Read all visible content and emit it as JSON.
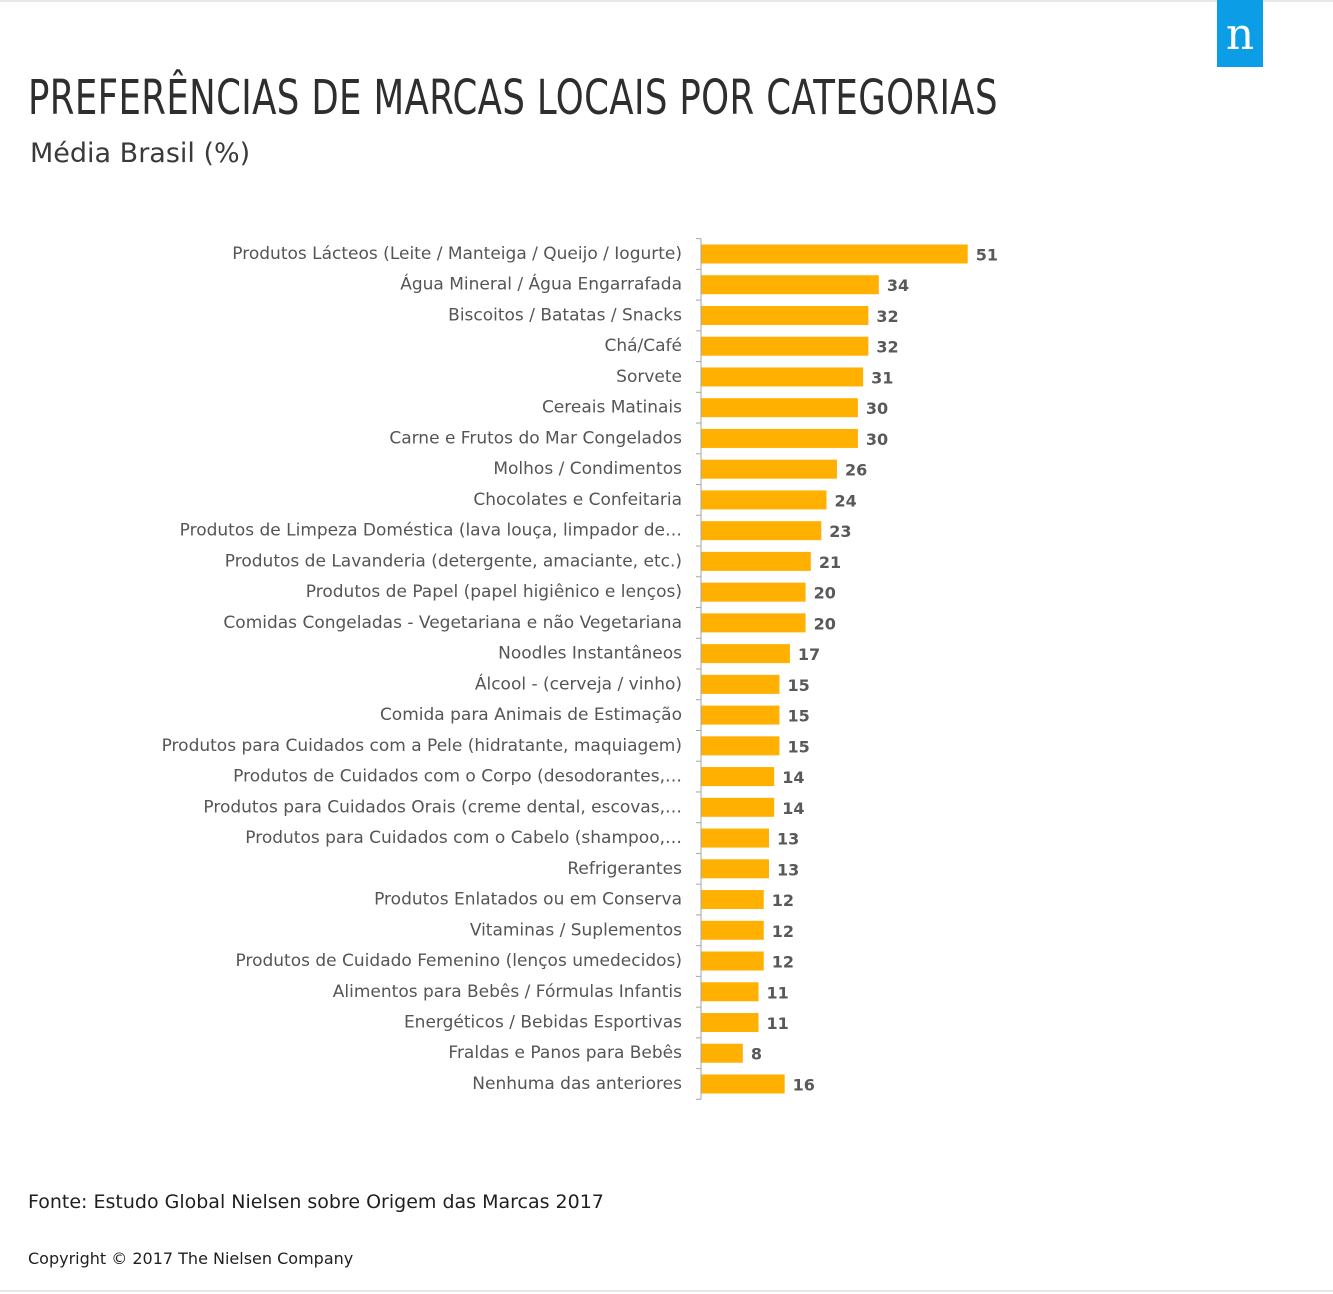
{
  "title": "PREFERÊNCIAS DE MARCAS LOCAIS POR CATEGORIAS",
  "subtitle": "Média Brasil (%)",
  "logo": {
    "letter": "n",
    "color": "#0b9ee6"
  },
  "source": "Fonte: Estudo Global Nielsen sobre Origem das Marcas 2017",
  "copyright": "Copyright  © 2017 The Nielsen  Company",
  "colors": {
    "bar": "#ffb000",
    "axis": "#a6a6a6",
    "label": "#555555",
    "value": "#595959"
  },
  "chart_data": {
    "type": "bar",
    "orientation": "horizontal",
    "title": "PREFERÊNCIAS DE MARCAS LOCAIS POR CATEGORIAS",
    "subtitle": "Média Brasil (%)",
    "xlabel": "",
    "ylabel": "",
    "grid": false,
    "legend": "none",
    "data_labels": true,
    "categories": [
      "Produtos Lácteos (Leite / Manteiga / Queijo / Iogurte)",
      "Água Mineral / Água Engarrafada",
      "Biscoitos / Batatas / Snacks",
      "Chá/Café",
      "Sorvete",
      "Cereais Matinais",
      "Carne e Frutos do Mar Congelados",
      "Molhos / Condimentos",
      "Chocolates e Confeitaria",
      "Produtos de Limpeza Doméstica (lava louça, limpador de…",
      "Produtos de Lavanderia (detergente, amaciante, etc.)",
      "Produtos de Papel (papel higiênico e lenços)",
      "Comidas Congeladas - Vegetariana e não Vegetariana",
      "Noodles Instantâneos",
      "Álcool - (cerveja / vinho)",
      "Comida para Animais de Estimação",
      "Produtos para Cuidados com a Pele (hidratante, maquiagem)",
      "Produtos de Cuidados com o Corpo (desodorantes,…",
      "Produtos para Cuidados Orais (creme dental, escovas,…",
      "Produtos para Cuidados com o Cabelo (shampoo,…",
      "Refrigerantes",
      "Produtos Enlatados ou em Conserva",
      "Vitaminas / Suplementos",
      "Produtos de Cuidado Femenino  (lenços umedecidos)",
      "Alimentos para Bebês / Fórmulas Infantis",
      "Energéticos / Bebidas Esportivas",
      "Fraldas e Panos para Bebês",
      "Nenhuma das anteriores"
    ],
    "values": [
      51,
      34,
      32,
      32,
      31,
      30,
      30,
      26,
      24,
      23,
      21,
      20,
      20,
      17,
      15,
      15,
      15,
      14,
      14,
      13,
      13,
      12,
      12,
      12,
      11,
      11,
      8,
      16
    ]
  }
}
